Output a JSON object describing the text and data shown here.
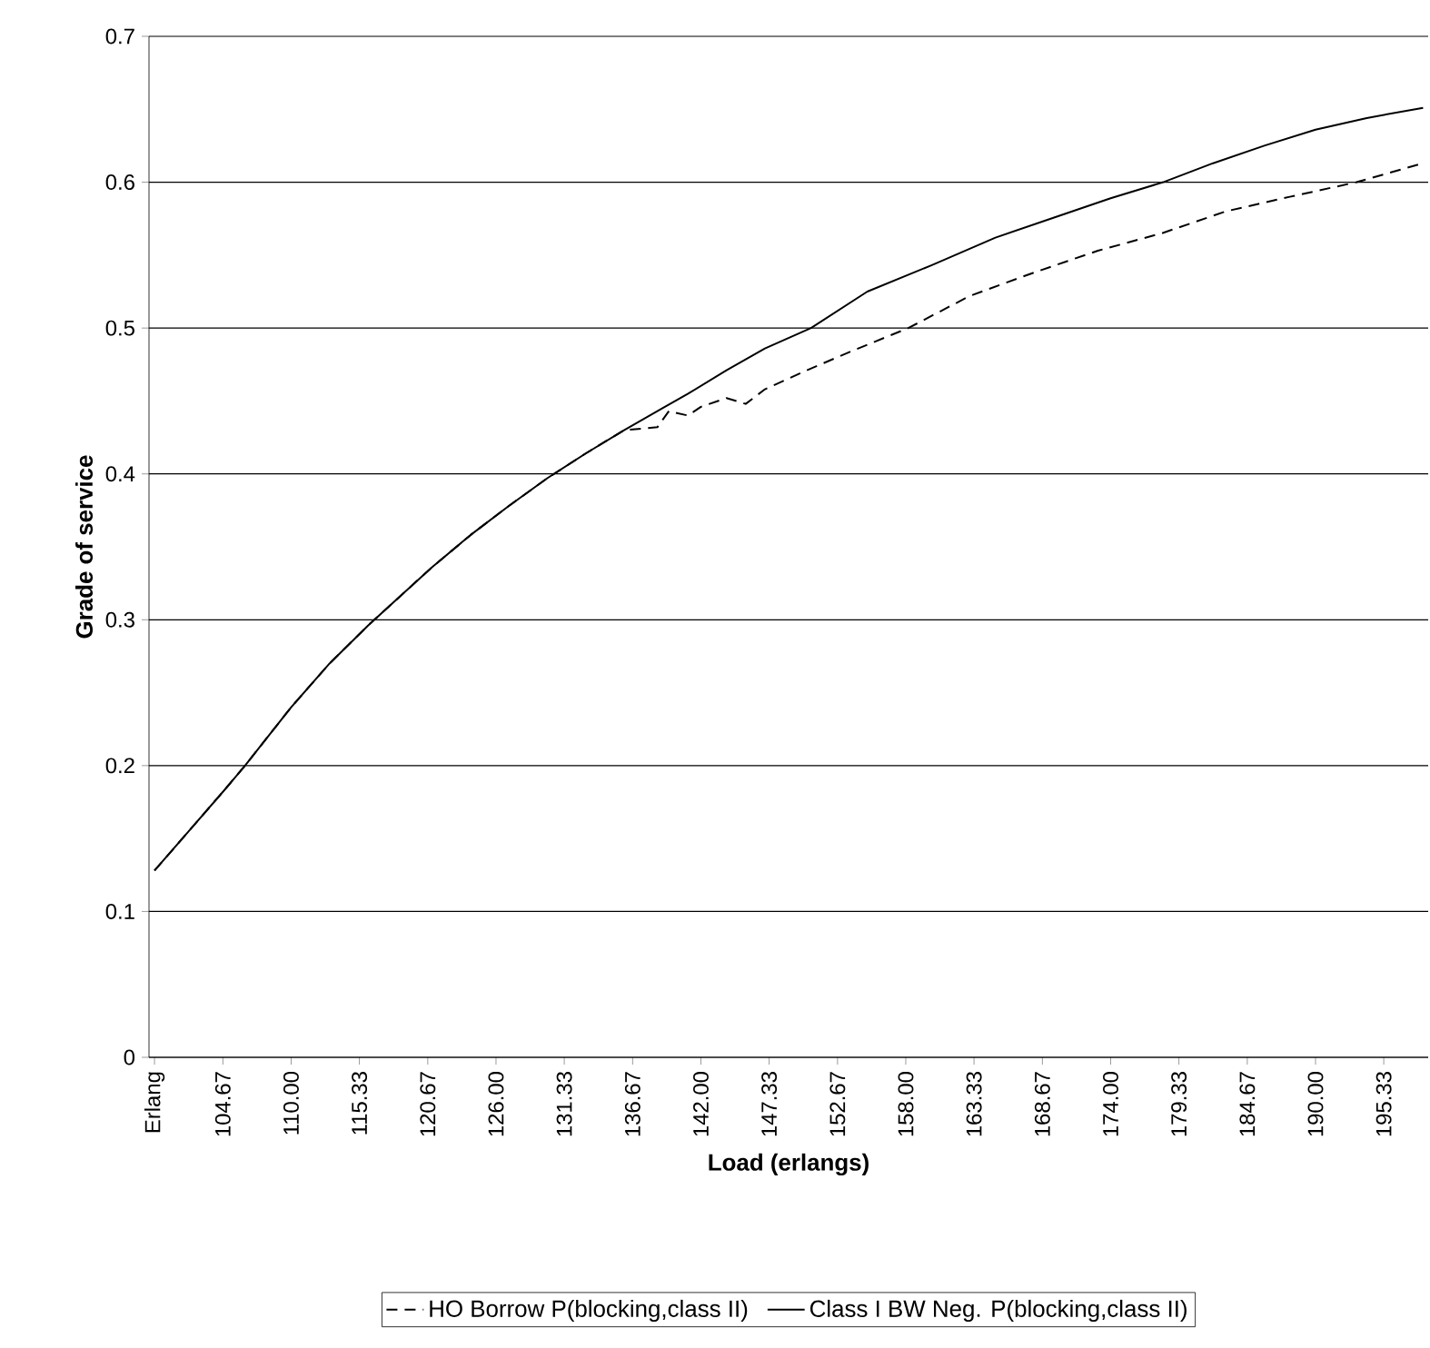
{
  "chart_data": {
    "type": "line",
    "xlabel": "Load (erlangs)",
    "ylabel": "Grade of service",
    "xlim": [
      98.9,
      198.8
    ],
    "ylim": [
      0,
      0.7
    ],
    "xticks": [
      {
        "value": 99.33,
        "label": "Erlang"
      },
      {
        "value": 104.67,
        "label": "104.67"
      },
      {
        "value": 110.0,
        "label": "110.00"
      },
      {
        "value": 115.33,
        "label": "115.33"
      },
      {
        "value": 120.67,
        "label": "120.67"
      },
      {
        "value": 126.0,
        "label": "126.00"
      },
      {
        "value": 131.33,
        "label": "131.33"
      },
      {
        "value": 136.67,
        "label": "136.67"
      },
      {
        "value": 142.0,
        "label": "142.00"
      },
      {
        "value": 147.33,
        "label": "147.33"
      },
      {
        "value": 152.67,
        "label": "152.67"
      },
      {
        "value": 158.0,
        "label": "158.00"
      },
      {
        "value": 163.33,
        "label": "163.33"
      },
      {
        "value": 168.67,
        "label": "168.67"
      },
      {
        "value": 174.0,
        "label": "174.00"
      },
      {
        "value": 179.33,
        "label": "179.33"
      },
      {
        "value": 184.67,
        "label": "184.67"
      },
      {
        "value": 190.0,
        "label": "190.00"
      },
      {
        "value": 195.33,
        "label": "195.33"
      }
    ],
    "yticks": [
      0,
      0.1,
      0.2,
      0.3,
      0.4,
      0.5,
      0.6,
      0.7
    ],
    "grid": "y",
    "legend": "bottom",
    "marker": "none",
    "series": [
      {
        "name": "HO Borrow P(blocking,class II)",
        "color": "#000000",
        "line_style": "dashed",
        "x": [
          99.33,
          102,
          104.67,
          106.4,
          110,
          113,
          116,
          118,
          121,
          124,
          127,
          130,
          133,
          136,
          138.6,
          139.5,
          141,
          142,
          144,
          145.5,
          147,
          150,
          154,
          158.2,
          163,
          168,
          173,
          178,
          183,
          188,
          193.2,
          198.4
        ],
        "values": [
          0.128,
          0.155,
          0.182,
          0.2,
          0.24,
          0.27,
          0.296,
          0.312,
          0.336,
          0.358,
          0.378,
          0.397,
          0.414,
          0.43,
          0.432,
          0.443,
          0.44,
          0.446,
          0.452,
          0.448,
          0.458,
          0.47,
          0.485,
          0.5,
          0.522,
          0.538,
          0.553,
          0.565,
          0.58,
          0.59,
          0.6,
          0.613
        ]
      },
      {
        "name": "Class I BW Neg. P(blocking,class II)",
        "color": "#000000",
        "line_style": "solid",
        "x": [
          99.33,
          102,
          104.67,
          106.4,
          110,
          113,
          116,
          118,
          121,
          124,
          127,
          130,
          133,
          136,
          139,
          141,
          144,
          147,
          150.6,
          155,
          160,
          165,
          170,
          174,
          178.1,
          182,
          186,
          190,
          194,
          198.4
        ],
        "values": [
          0.128,
          0.155,
          0.182,
          0.2,
          0.24,
          0.27,
          0.296,
          0.312,
          0.336,
          0.358,
          0.378,
          0.397,
          0.414,
          0.43,
          0.445,
          0.455,
          0.471,
          0.486,
          0.5,
          0.525,
          0.543,
          0.562,
          0.577,
          0.589,
          0.6,
          0.613,
          0.625,
          0.636,
          0.644,
          0.651
        ]
      }
    ]
  }
}
